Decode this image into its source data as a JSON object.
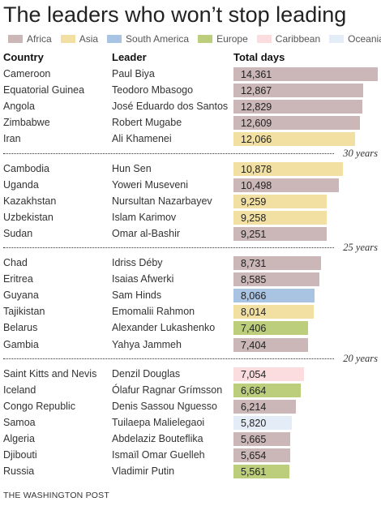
{
  "title": "The leaders who won’t stop leading",
  "source": "THE WASHINGTON POST",
  "legend": [
    {
      "key": "africa",
      "label": "Africa",
      "color": "#cbb6b8"
    },
    {
      "key": "asia",
      "label": "Asia",
      "color": "#f2dfa2"
    },
    {
      "key": "south_america",
      "label": "South America",
      "color": "#a9c3e2"
    },
    {
      "key": "europe",
      "label": "Europe",
      "color": "#bccd7c"
    },
    {
      "key": "caribbean",
      "label": "Caribbean",
      "color": "#fbdde0"
    },
    {
      "key": "oceania",
      "label": "Oceania",
      "color": "#e4ecf7"
    }
  ],
  "headers": {
    "country": "Country",
    "leader": "Leader",
    "days": "Total days"
  },
  "separators": [
    {
      "label": "30 years",
      "after_index": 4
    },
    {
      "label": "25 years",
      "after_index": 9
    },
    {
      "label": "20 years",
      "after_index": 15
    }
  ],
  "chart_data": {
    "type": "bar",
    "title": "The leaders who won’t stop leading",
    "xlabel": "Total days",
    "xlim": [
      0,
      14361
    ],
    "categories": [
      "Cameroon",
      "Equatorial Guinea",
      "Angola",
      "Zimbabwe",
      "Iran",
      "Cambodia",
      "Uganda",
      "Kazakhstan",
      "Uzbekistan",
      "Sudan",
      "Chad",
      "Eritrea",
      "Guyana",
      "Tajikistan",
      "Belarus",
      "Gambia",
      "Saint Kitts and Nevis",
      "Iceland",
      "Congo Republic",
      "Samoa",
      "Algeria",
      "Djibouti",
      "Russia"
    ],
    "rows": [
      {
        "country": "Cameroon",
        "leader": "Paul Biya",
        "days": 14361,
        "days_label": "14,361",
        "region": "africa"
      },
      {
        "country": "Equatorial Guinea",
        "leader": "Teodoro Mbasogo",
        "days": 12867,
        "days_label": "12,867",
        "region": "africa"
      },
      {
        "country": "Angola",
        "leader": "José Eduardo dos Santos",
        "days": 12829,
        "days_label": "12,829",
        "region": "africa"
      },
      {
        "country": "Zimbabwe",
        "leader": "Robert Mugabe",
        "days": 12609,
        "days_label": "12,609",
        "region": "africa"
      },
      {
        "country": "Iran",
        "leader": "Ali Khamenei",
        "days": 12066,
        "days_label": "12,066",
        "region": "asia"
      },
      {
        "country": "Cambodia",
        "leader": "Hun Sen",
        "days": 10878,
        "days_label": "10,878",
        "region": "asia"
      },
      {
        "country": "Uganda",
        "leader": "Yoweri Museveni",
        "days": 10498,
        "days_label": "10,498",
        "region": "africa"
      },
      {
        "country": "Kazakhstan",
        "leader": "Nursultan Nazarbayev",
        "days": 9259,
        "days_label": "9,259",
        "region": "asia"
      },
      {
        "country": "Uzbekistan",
        "leader": "Islam Karimov",
        "days": 9258,
        "days_label": "9,258",
        "region": "asia"
      },
      {
        "country": "Sudan",
        "leader": "Omar al-Bashir",
        "days": 9251,
        "days_label": "9,251",
        "region": "africa"
      },
      {
        "country": "Chad",
        "leader": "Idriss Déby",
        "days": 8731,
        "days_label": "8,731",
        "region": "africa"
      },
      {
        "country": "Eritrea",
        "leader": "Isaias Afwerki",
        "days": 8585,
        "days_label": "8,585",
        "region": "africa"
      },
      {
        "country": "Guyana",
        "leader": "Sam Hinds",
        "days": 8066,
        "days_label": "8,066",
        "region": "south_america"
      },
      {
        "country": "Tajikistan",
        "leader": "Emomalii Rahmon",
        "days": 8014,
        "days_label": "8,014",
        "region": "asia"
      },
      {
        "country": "Belarus",
        "leader": "Alexander Lukashenko",
        "days": 7406,
        "days_label": "7,406",
        "region": "europe"
      },
      {
        "country": "Gambia",
        "leader": "Yahya Jammeh",
        "days": 7404,
        "days_label": "7,404",
        "region": "africa"
      },
      {
        "country": "Saint Kitts and Nevis",
        "leader": "Denzil Douglas",
        "days": 7054,
        "days_label": "7,054",
        "region": "caribbean"
      },
      {
        "country": "Iceland",
        "leader": "Ólafur Ragnar Grímsson",
        "days": 6664,
        "days_label": "6,664",
        "region": "europe"
      },
      {
        "country": "Congo Republic",
        "leader": "Denis Sassou Nguesso",
        "days": 6214,
        "days_label": "6,214",
        "region": "africa"
      },
      {
        "country": "Samoa",
        "leader": "Tuilaepa Malielegaoi",
        "days": 5820,
        "days_label": "5,820",
        "region": "oceania"
      },
      {
        "country": "Algeria",
        "leader": "Abdelaziz Bouteflika",
        "days": 5665,
        "days_label": "5,665",
        "region": "africa"
      },
      {
        "country": "Djibouti",
        "leader": "Ismaïl Omar Guelleh",
        "days": 5654,
        "days_label": "5,654",
        "region": "africa"
      },
      {
        "country": "Russia",
        "leader": "Vladimir Putin",
        "days": 5561,
        "days_label": "5,561",
        "region": "europe"
      }
    ]
  }
}
